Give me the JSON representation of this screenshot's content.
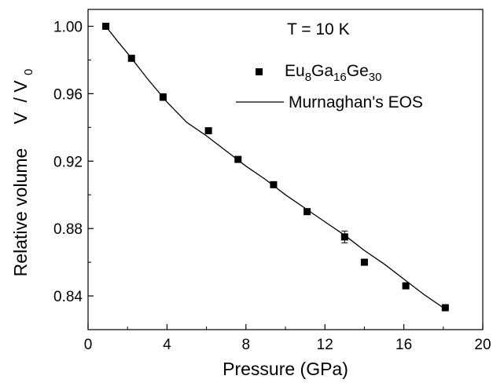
{
  "chart_data": {
    "type": "scatter",
    "xlabel": "Pressure (GPa)",
    "ylabel_main": "Relative volume",
    "ylabel_ratio": {
      "num": "V",
      "den": "V",
      "den_sub": "0"
    },
    "xlim": [
      0,
      20
    ],
    "ylim": [
      0.82,
      1.01
    ],
    "x_ticks": [
      0,
      4,
      8,
      12,
      16,
      20
    ],
    "x_tick_labels": [
      "0",
      "4",
      "8",
      "12",
      "16",
      "20"
    ],
    "y_ticks": [
      0.84,
      0.88,
      0.92,
      0.96,
      1.0
    ],
    "y_tick_labels": [
      "0.84",
      "0.88",
      "0.92",
      "0.96",
      "1.00"
    ],
    "grid": false,
    "annotation": "T = 10 K",
    "legend_position": "top-right",
    "series": [
      {
        "name_parts": [
          {
            "text": "Eu"
          },
          {
            "text": "8",
            "sub": true
          },
          {
            "text": "Ga"
          },
          {
            "text": "16",
            "sub": true
          },
          {
            "text": "Ge"
          },
          {
            "text": "30",
            "sub": true
          }
        ],
        "marker": "square",
        "x": [
          0.9,
          2.2,
          3.8,
          6.1,
          7.6,
          9.4,
          11.1,
          13.0,
          14.0,
          16.1,
          18.1
        ],
        "y": [
          1.0,
          0.981,
          0.958,
          0.938,
          0.921,
          0.906,
          0.89,
          0.875,
          0.86,
          0.846,
          0.833
        ],
        "err": [
          0.0012,
          0.0014,
          0.002,
          0.0012,
          0.0012,
          0.0012,
          0.0012,
          0.0035,
          0.0012,
          0.0012,
          0.0012
        ]
      },
      {
        "name": "Murnaghan's EOS",
        "type": "line",
        "x": [
          0.9,
          1.5,
          2.0,
          3.0,
          4.0,
          5.0,
          6.0,
          7.0,
          8.0,
          9.0,
          10.0,
          11.0,
          12.0,
          13.0,
          14.0,
          15.0,
          16.0,
          17.0,
          18.0
        ],
        "y": [
          1.0,
          0.991,
          0.984,
          0.969,
          0.955,
          0.943,
          0.935,
          0.926,
          0.917,
          0.909,
          0.9,
          0.892,
          0.884,
          0.876,
          0.867,
          0.859,
          0.85,
          0.841,
          0.833
        ]
      }
    ]
  }
}
